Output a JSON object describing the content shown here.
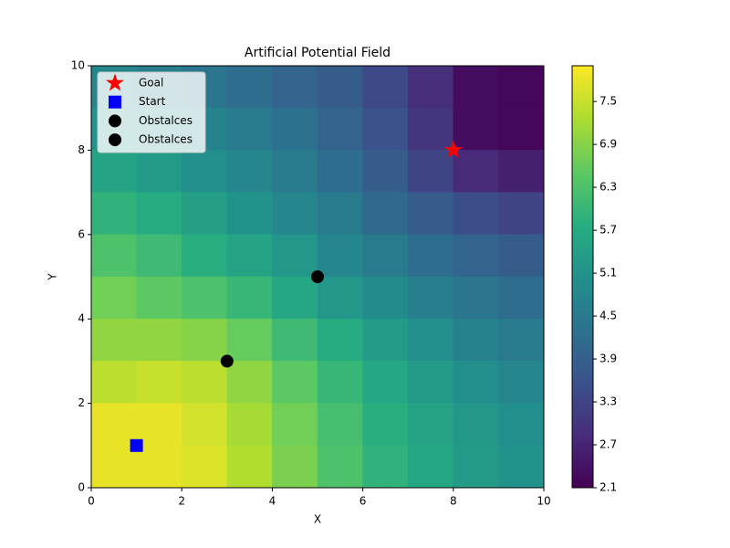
{
  "chart_data": {
    "type": "contour",
    "title": "Artificial Potential Field",
    "x_label": "X",
    "y_label": "Y",
    "xlim": [
      0,
      10
    ],
    "ylim": [
      0,
      10
    ],
    "xticks": [
      0,
      2,
      4,
      6,
      8,
      10
    ],
    "yticks": [
      0,
      2,
      4,
      6,
      8,
      10
    ],
    "colormap": "viridis",
    "colorbar": {
      "lim": [
        2.1,
        8.0
      ],
      "ticks": [
        2.1,
        2.7,
        3.3,
        3.9,
        4.5,
        5.1,
        5.7,
        6.3,
        6.9,
        7.5
      ]
    },
    "field": {
      "x": [
        0.5,
        1.5,
        2.5,
        3.5,
        4.5,
        5.5,
        6.5,
        7.5,
        8.5,
        9.5
      ],
      "y": [
        9.5,
        8.5,
        7.5,
        6.5,
        5.5,
        4.5,
        3.5,
        2.5,
        1.5,
        0.5
      ],
      "z": [
        [
          4.8,
          4.6,
          4.4,
          4.2,
          4.0,
          3.8,
          3.4,
          2.9,
          2.3,
          2.2
        ],
        [
          5.1,
          4.9,
          4.7,
          4.5,
          4.3,
          4.0,
          3.6,
          3.0,
          2.3,
          2.2
        ],
        [
          5.5,
          5.3,
          5.0,
          4.8,
          4.5,
          4.2,
          3.8,
          3.3,
          2.8,
          2.6
        ],
        [
          5.9,
          5.7,
          5.4,
          5.1,
          4.8,
          4.5,
          4.1,
          3.8,
          3.5,
          3.3
        ],
        [
          6.3,
          6.1,
          5.8,
          5.5,
          5.2,
          4.8,
          4.5,
          4.2,
          4.0,
          3.8
        ],
        [
          6.7,
          6.5,
          6.3,
          6.0,
          5.6,
          5.2,
          4.9,
          4.6,
          4.4,
          4.2
        ],
        [
          7.0,
          7.0,
          6.9,
          6.6,
          6.1,
          5.7,
          5.3,
          5.0,
          4.7,
          4.5
        ],
        [
          7.4,
          7.5,
          7.4,
          7.0,
          6.5,
          6.0,
          5.6,
          5.3,
          5.0,
          4.8
        ],
        [
          7.8,
          7.8,
          7.6,
          7.2,
          6.7,
          6.2,
          5.8,
          5.5,
          5.2,
          5.0
        ],
        [
          7.8,
          7.8,
          7.7,
          7.3,
          6.8,
          6.3,
          5.9,
          5.6,
          5.3,
          5.1
        ]
      ]
    },
    "series": [
      {
        "name": "Goal",
        "color": "#ff0000",
        "marker": "star",
        "x": [
          8
        ],
        "y": [
          8
        ]
      },
      {
        "name": "Start",
        "color": "#0000ff",
        "marker": "square",
        "x": [
          1
        ],
        "y": [
          1
        ]
      },
      {
        "name": "Obstalces",
        "color": "#000000",
        "marker": "circle",
        "x": [
          3
        ],
        "y": [
          3
        ]
      },
      {
        "name": "Obstalces",
        "color": "#000000",
        "marker": "circle",
        "x": [
          5
        ],
        "y": [
          5
        ]
      }
    ],
    "legend": "upper left"
  }
}
